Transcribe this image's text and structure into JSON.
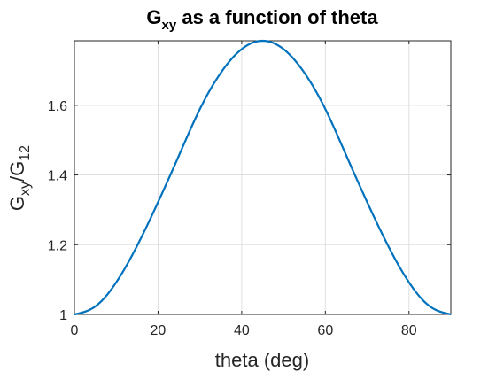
{
  "chart_data": {
    "type": "line",
    "title": {
      "main": "G",
      "main_sub": "xy",
      "rest": " as a function of theta"
    },
    "xlabel": "theta (deg)",
    "ylabel": {
      "part1": "G",
      "part1_sub": "xy",
      "part2": "/G",
      "part2_sub": "12"
    },
    "xlim": [
      0,
      90
    ],
    "ylim": [
      1,
      1.785
    ],
    "xticks": [
      0,
      20,
      40,
      60,
      80
    ],
    "yticks": [
      1,
      1.2,
      1.4,
      1.6
    ],
    "ytick_labels": [
      "1",
      "1.2",
      "1.4",
      "1.6"
    ],
    "grid": true,
    "line_color": "#0072BD",
    "series": [
      {
        "x": [
          0,
          5,
          10,
          15,
          20,
          25,
          30,
          35,
          40,
          45,
          50,
          55,
          60,
          65,
          70,
          75,
          80,
          85,
          90
        ],
        "y": [
          1.0,
          1.023,
          1.092,
          1.197,
          1.322,
          1.456,
          1.589,
          1.693,
          1.761,
          1.785,
          1.761,
          1.693,
          1.589,
          1.456,
          1.322,
          1.197,
          1.092,
          1.023,
          1.0
        ]
      }
    ]
  }
}
